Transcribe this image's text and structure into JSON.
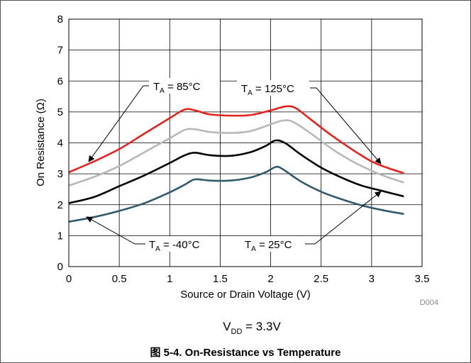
{
  "chart_data": {
    "type": "line",
    "title": "",
    "xlabel": "Source or Drain Voltage (V)",
    "ylabel": "On Resistance (Ω)",
    "xlim": [
      0,
      3.5
    ],
    "ylim": [
      0,
      8
    ],
    "x_ticks": [
      "0",
      "0.5",
      "1",
      "1.5",
      "2",
      "2.5",
      "3",
      "3.5"
    ],
    "y_ticks": [
      "0",
      "1",
      "2",
      "3",
      "4",
      "5",
      "6",
      "7",
      "8"
    ],
    "grid": true,
    "series": [
      {
        "name": "TA = 125°C",
        "color": "#e8211d",
        "points": [
          [
            0,
            3.05
          ],
          [
            0.25,
            3.4
          ],
          [
            0.5,
            3.8
          ],
          [
            0.75,
            4.3
          ],
          [
            1.0,
            4.8
          ],
          [
            1.15,
            5.08
          ],
          [
            1.25,
            5.05
          ],
          [
            1.4,
            4.92
          ],
          [
            1.6,
            4.88
          ],
          [
            1.8,
            4.9
          ],
          [
            2.0,
            5.05
          ],
          [
            2.15,
            5.18
          ],
          [
            2.25,
            5.12
          ],
          [
            2.4,
            4.75
          ],
          [
            2.6,
            4.25
          ],
          [
            2.8,
            3.8
          ],
          [
            3.0,
            3.4
          ],
          [
            3.15,
            3.2
          ],
          [
            3.32,
            3.02
          ]
        ]
      },
      {
        "name": "TA = 85°C",
        "color": "#b8b8b8",
        "points": [
          [
            0,
            2.62
          ],
          [
            0.25,
            2.9
          ],
          [
            0.5,
            3.25
          ],
          [
            0.75,
            3.7
          ],
          [
            1.0,
            4.15
          ],
          [
            1.15,
            4.42
          ],
          [
            1.25,
            4.44
          ],
          [
            1.4,
            4.35
          ],
          [
            1.6,
            4.32
          ],
          [
            1.8,
            4.38
          ],
          [
            2.0,
            4.6
          ],
          [
            2.12,
            4.72
          ],
          [
            2.22,
            4.68
          ],
          [
            2.4,
            4.3
          ],
          [
            2.6,
            3.82
          ],
          [
            2.8,
            3.42
          ],
          [
            3.0,
            3.1
          ],
          [
            3.15,
            2.9
          ],
          [
            3.32,
            2.72
          ]
        ]
      },
      {
        "name": "TA = 25°C",
        "color": "#000000",
        "points": [
          [
            0,
            2.05
          ],
          [
            0.25,
            2.25
          ],
          [
            0.5,
            2.6
          ],
          [
            0.75,
            2.95
          ],
          [
            1.0,
            3.35
          ],
          [
            1.15,
            3.6
          ],
          [
            1.25,
            3.68
          ],
          [
            1.4,
            3.6
          ],
          [
            1.6,
            3.58
          ],
          [
            1.8,
            3.7
          ],
          [
            1.95,
            3.9
          ],
          [
            2.05,
            4.08
          ],
          [
            2.15,
            3.98
          ],
          [
            2.3,
            3.62
          ],
          [
            2.5,
            3.2
          ],
          [
            2.7,
            2.88
          ],
          [
            2.9,
            2.62
          ],
          [
            3.1,
            2.45
          ],
          [
            3.32,
            2.27
          ]
        ]
      },
      {
        "name": "TA = -40°C",
        "color": "#2e5a6e",
        "points": [
          [
            0,
            1.45
          ],
          [
            0.25,
            1.6
          ],
          [
            0.5,
            1.8
          ],
          [
            0.75,
            2.05
          ],
          [
            1.0,
            2.4
          ],
          [
            1.15,
            2.65
          ],
          [
            1.25,
            2.82
          ],
          [
            1.4,
            2.78
          ],
          [
            1.6,
            2.78
          ],
          [
            1.8,
            2.88
          ],
          [
            1.95,
            3.05
          ],
          [
            2.05,
            3.22
          ],
          [
            2.12,
            3.15
          ],
          [
            2.3,
            2.75
          ],
          [
            2.5,
            2.42
          ],
          [
            2.7,
            2.18
          ],
          [
            2.9,
            1.98
          ],
          [
            3.1,
            1.83
          ],
          [
            3.32,
            1.7
          ]
        ]
      }
    ],
    "annotations": [
      {
        "label": "TA = 85°C",
        "main": "T",
        "sub": "A",
        "rest": " = 85°C"
      },
      {
        "label": "TA = 125°C",
        "main": "T",
        "sub": "A",
        "rest": " = 125°C"
      },
      {
        "label": "TA = -40°C",
        "main": "T",
        "sub": "A",
        "rest": " = -40°C"
      },
      {
        "label": "TA = 25°C",
        "main": "T",
        "sub": "A",
        "rest": " = 25°C"
      }
    ],
    "graph_code": "D004",
    "condition": {
      "main": "V",
      "sub": "DD",
      "rest": " = 3.3V"
    }
  },
  "caption": "图 5-4. On-Resistance vs Temperature"
}
